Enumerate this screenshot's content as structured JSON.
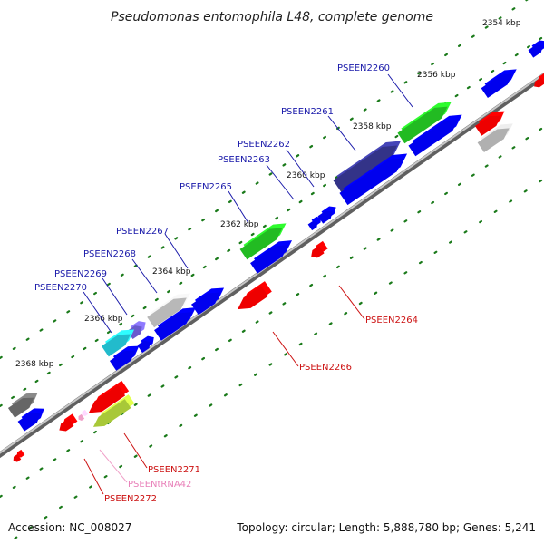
{
  "title": "Pseudomonas entomophila L48, complete genome",
  "footer": {
    "accession": "Accession: NC_008027",
    "summary": "Topology: circular; Length: 5,888,780 bp; Genes: 5,241"
  },
  "colors": {
    "forward_strand": "#0000ee",
    "reverse_strand": "#ee0000",
    "trna": "#f0a0c8",
    "backbone": "#808080",
    "tick": "#1a7a1a",
    "forward_label": "#1a1aaa",
    "reverse_label": "#cc1111",
    "trna_label": "#e87fb8"
  },
  "ticks": [
    "2354 kbp",
    "2356 kbp",
    "2358 kbp",
    "2360 kbp",
    "2362 kbp",
    "2364 kbp",
    "2366 kbp",
    "2368 kbp"
  ],
  "forward_labels": [
    "PSEEN2260",
    "PSEEN2261",
    "PSEEN2262",
    "PSEEN2263",
    "PSEEN2265",
    "PSEEN2267",
    "PSEEN2268",
    "PSEEN2269",
    "PSEEN2270"
  ],
  "reverse_labels": [
    "PSEEN2264",
    "PSEEN2266",
    "PSEEN2271",
    "PSEENtRNA42",
    "PSEEN2272"
  ],
  "legend_note": ""
}
